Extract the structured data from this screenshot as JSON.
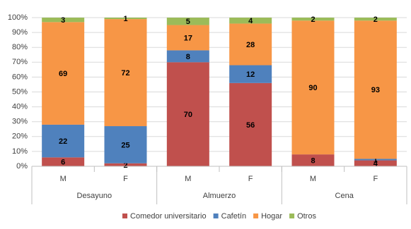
{
  "chart_data": {
    "type": "stacked_bar",
    "categories": [
      "M",
      "F",
      "M",
      "F",
      "M",
      "F"
    ],
    "groups": [
      "Desayuno",
      "Almuerzo",
      "Cena"
    ],
    "series": [
      {
        "name": "Comedor universitario",
        "color": "#c0504d",
        "values": [
          6,
          2,
          70,
          56,
          8,
          4
        ]
      },
      {
        "name": "Cafetín",
        "color": "#4f81bd",
        "values": [
          22,
          25,
          8,
          12,
          null,
          1
        ]
      },
      {
        "name": "Hogar",
        "color": "#f79646",
        "values": [
          69,
          72,
          17,
          28,
          90,
          93
        ]
      },
      {
        "name": "Otros",
        "color": "#9bbb59",
        "values": [
          3,
          1,
          5,
          4,
          2,
          2
        ]
      }
    ],
    "ylim": [
      0,
      100
    ],
    "yticks": [
      {
        "value": 0,
        "label": "0%"
      },
      {
        "value": 10,
        "label": "10%"
      },
      {
        "value": 20,
        "label": "20%"
      },
      {
        "value": 30,
        "label": "30%"
      },
      {
        "value": 40,
        "label": "40%"
      },
      {
        "value": 50,
        "label": "50%"
      },
      {
        "value": 60,
        "label": "60%"
      },
      {
        "value": 70,
        "label": "70%"
      },
      {
        "value": 80,
        "label": "80%"
      },
      {
        "value": 90,
        "label": "90%"
      },
      {
        "value": 100,
        "label": "100%"
      }
    ],
    "grid": true,
    "legend": "bottom"
  }
}
